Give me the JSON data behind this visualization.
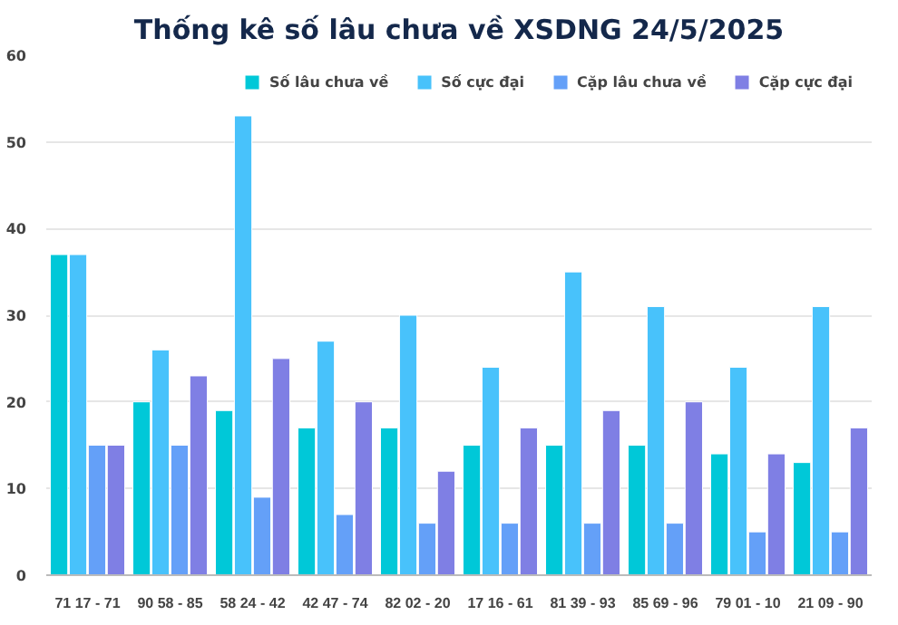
{
  "chart_data": {
    "type": "bar",
    "title": "Thống kê số lâu chưa về XSDNG 24/5/2025",
    "categories": [
      "71 17 - 71",
      "90 58 - 85",
      "58 24 - 42",
      "42 47 - 74",
      "82 02 - 20",
      "17 16 - 61",
      "81 39 - 93",
      "85 69 - 96",
      "79 01 - 10",
      "21 09 - 90"
    ],
    "series": [
      {
        "name": "Số lâu chưa về",
        "color": "#00c8d8",
        "values": [
          37,
          20,
          19,
          17,
          17,
          15,
          15,
          15,
          14,
          13
        ]
      },
      {
        "name": "Số cực đại",
        "color": "#48c2fb",
        "values": [
          37,
          26,
          53,
          27,
          30,
          24,
          35,
          31,
          24,
          31
        ]
      },
      {
        "name": "Cặp lâu chưa về",
        "color": "#64a0f8",
        "values": [
          15,
          15,
          9,
          7,
          6,
          6,
          6,
          6,
          5,
          5
        ]
      },
      {
        "name": "Cặp cực đại",
        "color": "#7f7fe4",
        "values": [
          15,
          23,
          25,
          20,
          12,
          17,
          19,
          20,
          14,
          17
        ]
      }
    ],
    "ylim": [
      0,
      60
    ],
    "yticks": [
      0,
      10,
      20,
      30,
      40,
      50,
      60
    ],
    "grid": "y",
    "legend": "top"
  }
}
